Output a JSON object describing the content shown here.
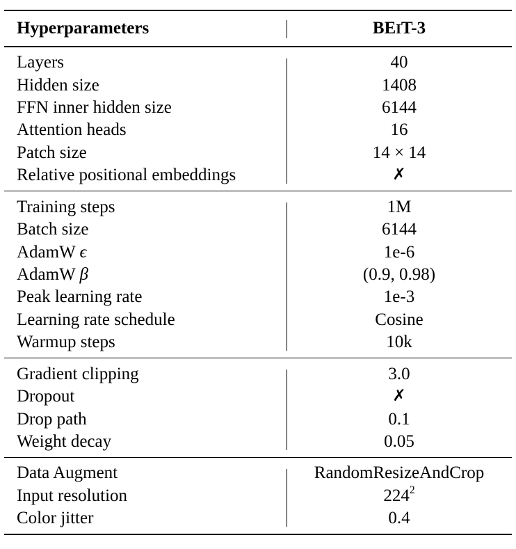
{
  "header": {
    "col1": "Hyperparameters",
    "model_prefix": "BE",
    "model_small_caps": "I",
    "model_suffix": "T-3"
  },
  "sections": [
    {
      "rows": [
        {
          "name": "Layers",
          "value": "40"
        },
        {
          "name": "Hidden size",
          "value": "1408"
        },
        {
          "name": "FFN inner hidden size",
          "value": "6144"
        },
        {
          "name": "Attention heads",
          "value": "16"
        },
        {
          "name": "Patch size",
          "value": "14 × 14"
        },
        {
          "name": "Relative positional embeddings",
          "value": "✗"
        }
      ]
    },
    {
      "rows": [
        {
          "name": "Training steps",
          "value": "1M"
        },
        {
          "name": "Batch size",
          "value": "6144"
        },
        {
          "name": "AdamW",
          "symbol": "ϵ",
          "value": "1e-6"
        },
        {
          "name": "AdamW",
          "symbol": "β",
          "value": "(0.9, 0.98)"
        },
        {
          "name": "Peak learning rate",
          "value": "1e-3"
        },
        {
          "name": "Learning rate schedule",
          "value": "Cosine"
        },
        {
          "name": "Warmup steps",
          "value": "10k"
        }
      ]
    },
    {
      "rows": [
        {
          "name": "Gradient clipping",
          "value": "3.0"
        },
        {
          "name": "Dropout",
          "value": "✗"
        },
        {
          "name": "Drop path",
          "value": "0.1"
        },
        {
          "name": "Weight decay",
          "value": "0.05"
        }
      ]
    },
    {
      "rows": [
        {
          "name": "Data Augment",
          "value": "RandomResizeAndCrop"
        },
        {
          "name": "Input resolution",
          "value": "224",
          "superscript": "2"
        },
        {
          "name": "Color jitter",
          "value": "0.4"
        }
      ]
    }
  ]
}
